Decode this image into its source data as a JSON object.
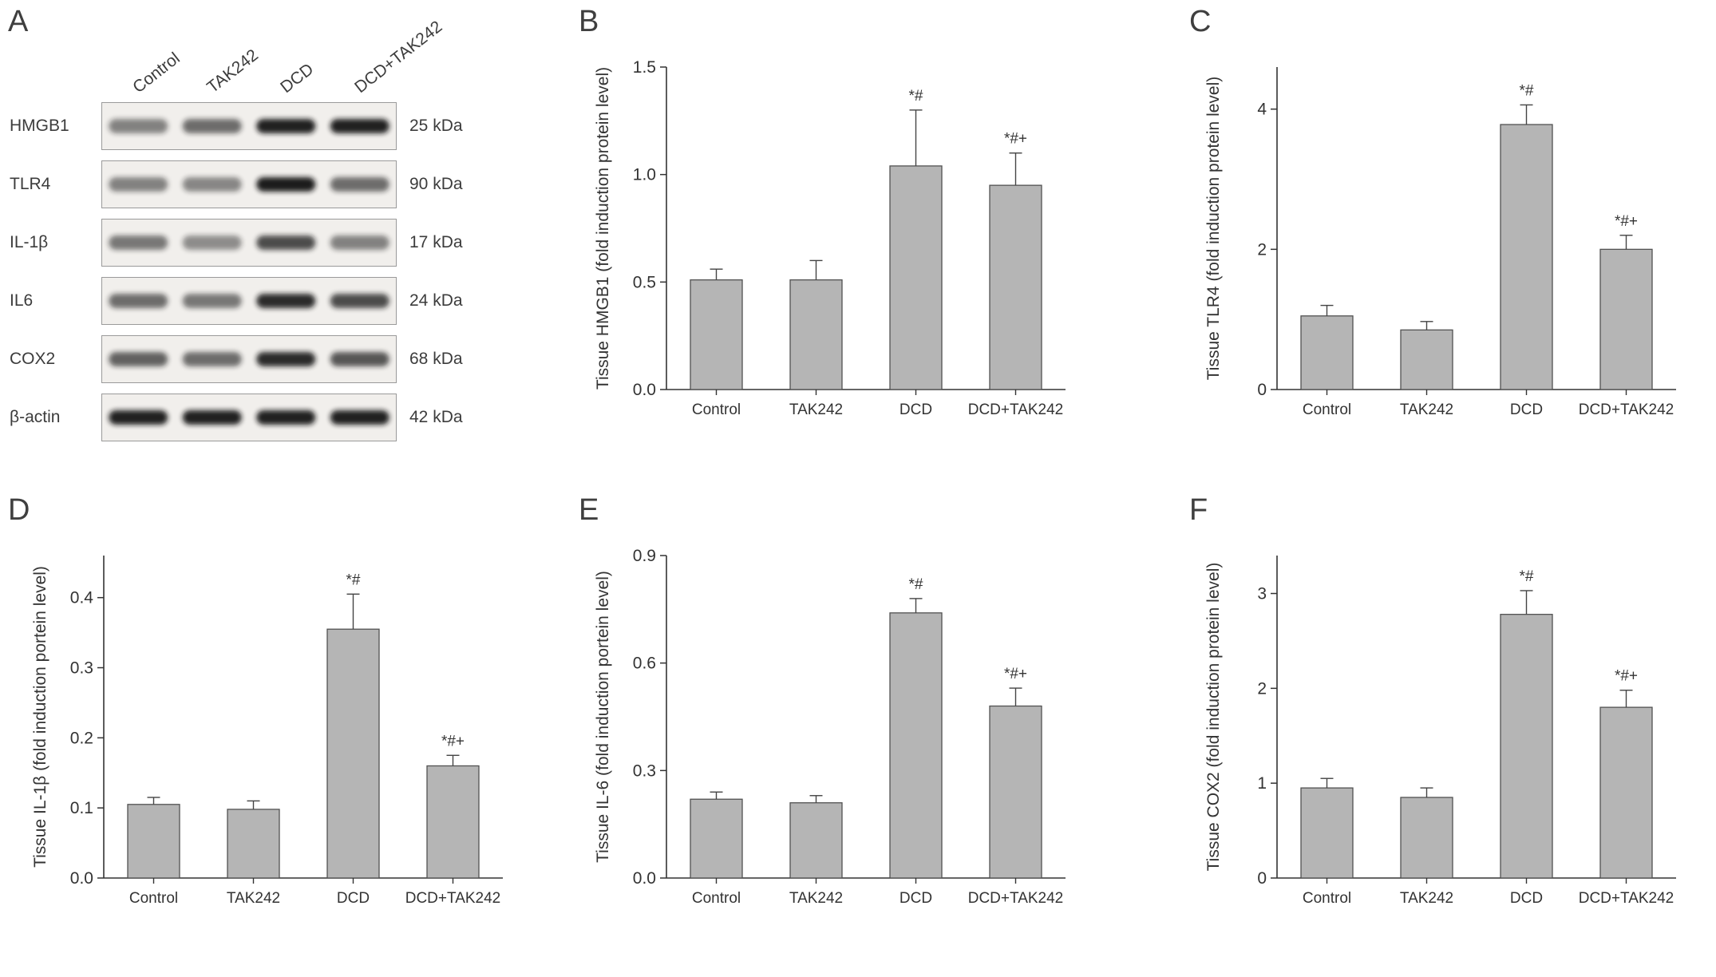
{
  "blot": {
    "panel": "A",
    "lanes": [
      "Control",
      "TAK242",
      "DCD",
      "DCD+TAK242"
    ],
    "rows": [
      {
        "protein": "HMGB1",
        "kda": "25 kDa",
        "bands": [
          0.5,
          0.6,
          0.95,
          0.95
        ]
      },
      {
        "protein": "TLR4",
        "kda": "90 kDa",
        "bands": [
          0.5,
          0.48,
          0.97,
          0.6
        ]
      },
      {
        "protein": "IL-1β",
        "kda": "17 kDa",
        "bands": [
          0.55,
          0.45,
          0.75,
          0.5
        ]
      },
      {
        "protein": "IL6",
        "kda": "24 kDa",
        "bands": [
          0.6,
          0.55,
          0.9,
          0.75
        ]
      },
      {
        "protein": "COX2",
        "kda": "68 kDa",
        "bands": [
          0.65,
          0.6,
          0.9,
          0.7
        ]
      },
      {
        "protein": "β-actin",
        "kda": "42 kDa",
        "bands": [
          0.95,
          0.95,
          0.95,
          0.95
        ]
      }
    ]
  },
  "chart_data": [
    {
      "panel": "B",
      "type": "bar",
      "title": "",
      "ylabel": "Tissue HMGB1 (fold induction protein level)",
      "xlabel": "",
      "ylim": [
        0,
        1.5
      ],
      "yticks": [
        0,
        0.5,
        1.0,
        1.5
      ],
      "ytick_labels": [
        "0.0",
        "0.5",
        "1.0",
        "1.5"
      ],
      "categories": [
        "Control",
        "TAK242",
        "DCD",
        "DCD+TAK242"
      ],
      "values": [
        0.51,
        0.51,
        1.04,
        0.95
      ],
      "errors": [
        0.05,
        0.09,
        0.26,
        0.15
      ],
      "annotations": [
        "",
        "",
        "*#",
        "*#+"
      ],
      "bar_color": "#b5b5b5",
      "grid": false,
      "legend": "none"
    },
    {
      "panel": "C",
      "type": "bar",
      "title": "",
      "ylabel": "Tissue TLR4 (fold induction protein level)",
      "xlabel": "",
      "ylim": [
        0,
        4.6
      ],
      "yticks": [
        0,
        2,
        4
      ],
      "ytick_labels": [
        "0",
        "2",
        "4"
      ],
      "categories": [
        "Control",
        "TAK242",
        "DCD",
        "DCD+TAK242"
      ],
      "values": [
        1.05,
        0.85,
        3.78,
        2.0
      ],
      "errors": [
        0.15,
        0.12,
        0.28,
        0.2
      ],
      "annotations": [
        "",
        "",
        "*#",
        "*#+"
      ],
      "bar_color": "#b5b5b5",
      "grid": false,
      "legend": "none"
    },
    {
      "panel": "D",
      "type": "bar",
      "title": "",
      "ylabel": "Tissue IL-1β (fold induction portein level)",
      "xlabel": "",
      "ylim": [
        0,
        0.46
      ],
      "yticks": [
        0,
        0.1,
        0.2,
        0.3,
        0.4
      ],
      "ytick_labels": [
        "0.0",
        "0.1",
        "0.2",
        "0.3",
        "0.4"
      ],
      "categories": [
        "Control",
        "TAK242",
        "DCD",
        "DCD+TAK242"
      ],
      "values": [
        0.105,
        0.098,
        0.355,
        0.16
      ],
      "errors": [
        0.01,
        0.012,
        0.05,
        0.015
      ],
      "annotations": [
        "",
        "",
        "*#",
        "*#+"
      ],
      "bar_color": "#b5b5b5",
      "grid": false,
      "legend": "none"
    },
    {
      "panel": "E",
      "type": "bar",
      "title": "",
      "ylabel": "Tissue IL-6 (fold induction portein level)",
      "xlabel": "",
      "ylim": [
        0,
        0.9
      ],
      "yticks": [
        0,
        0.3,
        0.6,
        0.9
      ],
      "ytick_labels": [
        "0.0",
        "0.3",
        "0.6",
        "0.9"
      ],
      "categories": [
        "Control",
        "TAK242",
        "DCD",
        "DCD+TAK242"
      ],
      "values": [
        0.22,
        0.21,
        0.74,
        0.48
      ],
      "errors": [
        0.02,
        0.02,
        0.04,
        0.05
      ],
      "annotations": [
        "",
        "",
        "*#",
        "*#+"
      ],
      "bar_color": "#b5b5b5",
      "grid": false,
      "legend": "none"
    },
    {
      "panel": "F",
      "type": "bar",
      "title": "",
      "ylabel": "Tissue COX2 (fold induction protein level)",
      "xlabel": "",
      "ylim": [
        0,
        3.4
      ],
      "yticks": [
        0,
        1,
        2,
        3
      ],
      "ytick_labels": [
        "0",
        "1",
        "2",
        "3"
      ],
      "categories": [
        "Control",
        "TAK242",
        "DCD",
        "DCD+TAK242"
      ],
      "values": [
        0.95,
        0.85,
        2.78,
        1.8
      ],
      "errors": [
        0.1,
        0.1,
        0.25,
        0.18
      ],
      "annotations": [
        "",
        "",
        "*#",
        "*#+"
      ],
      "bar_color": "#b5b5b5",
      "grid": false,
      "legend": "none"
    }
  ]
}
